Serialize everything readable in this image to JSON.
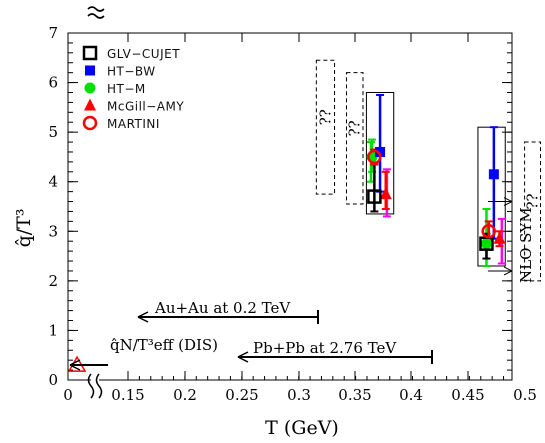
{
  "chart_data": {
    "type": "scatter",
    "xlabel": "T (GeV)",
    "ylabel": "q̂/T³",
    "xlim": [
      0,
      0.55
    ],
    "ylim": [
      0,
      7
    ],
    "x_ticks": [
      "0",
      "0.15",
      "0.2",
      "0.25",
      "0.3",
      "0.35",
      "0.4",
      "0.45",
      "0.5"
    ],
    "y_ticks": [
      "0",
      "1",
      "2",
      "3",
      "4",
      "5",
      "6",
      "7"
    ],
    "axis_break": true,
    "legend_position": "top-left",
    "series": [
      {
        "name": "GLV−CUJET",
        "marker": "open-square",
        "color": "#000000",
        "points": [
          {
            "x": 0.3665,
            "y": 3.7,
            "err_low": 0.3,
            "err_high": 0.65
          },
          {
            "x": 0.465,
            "y": 2.75,
            "err_low": 0.3,
            "err_high": 0.2
          }
        ]
      },
      {
        "name": "HT−BW",
        "marker": "filled-square",
        "color": "#0000ff",
        "points": [
          {
            "x": 0.3715,
            "y": 4.6,
            "err_low": 0.8,
            "err_high": 1.15
          },
          {
            "x": 0.4715,
            "y": 4.15,
            "err_low": 1.3,
            "err_high": 0.95
          }
        ]
      },
      {
        "name": "HT−M",
        "marker": "filled-circle",
        "color": "#00e000",
        "points": [
          {
            "x": 0.3645,
            "y": 4.5,
            "err_low": 0.3,
            "err_high": 0.35
          },
          {
            "x": 0.465,
            "y": 2.75,
            "err_low": 0.45,
            "err_high": 0.7
          }
        ]
      },
      {
        "name": "McGill−AMY",
        "marker": "filled-triangle",
        "color": "#ff0000",
        "points": [
          {
            "x": 0.3765,
            "y": 3.75,
            "err_low": 0.3,
            "err_high": 0.45
          },
          {
            "x": 0.4765,
            "y": 2.85,
            "err_low": 0.15,
            "err_high": 0.15
          }
        ]
      },
      {
        "name": "MARTINI",
        "marker": "open-circle",
        "color": "#ff0000",
        "points": [
          {
            "x": 0.3665,
            "y": 4.5,
            "err_low": 0.15,
            "err_high": 0.15
          },
          {
            "x": 0.467,
            "y": 3.0,
            "err_low": 0.2,
            "err_high": 0.2
          }
        ]
      }
    ],
    "extra_error_bars": [
      {
        "x": 0.3775,
        "y_low": 3.3,
        "y_high": 4.25,
        "color": "#ff00ff"
      },
      {
        "x": 0.4785,
        "y_low": 2.35,
        "y_high": 3.25,
        "color": "#ff00ff"
      },
      {
        "x": 0.3635,
        "y_low": 4.0,
        "y_high": 4.8,
        "color": "#00e000"
      }
    ],
    "solid_boxes": [
      {
        "x0": 0.3595,
        "x1": 0.3835,
        "y0": 3.35,
        "y1": 5.8
      },
      {
        "x0": 0.4575,
        "x1": 0.4815,
        "y0": 2.3,
        "y1": 5.1
      }
    ],
    "dashed_boxes": [
      {
        "x0": 0.3155,
        "x1": 0.3315,
        "y0": 3.75,
        "y1": 6.45,
        "label": "??"
      },
      {
        "x0": 0.342,
        "x1": 0.3565,
        "y0": 3.55,
        "y1": 6.2,
        "label": "??"
      },
      {
        "x0": 0.4985,
        "x1": 0.5125,
        "y0": 2.0,
        "y1": 4.8,
        "label": "??"
      }
    ],
    "dis_point": {
      "x": 0.022,
      "y": 0.3,
      "marker": "open-triangle",
      "color": "#ff0000"
    },
    "annotations": {
      "auau": "Au+Au at 0.2 TeV",
      "pbpb": "Pb+Pb at 2.76 TeV",
      "dis": "q̂N/T³eff (DIS)",
      "nlo": "NLO SYM"
    },
    "nlo_values": [
      3.6,
      2.2
    ]
  }
}
